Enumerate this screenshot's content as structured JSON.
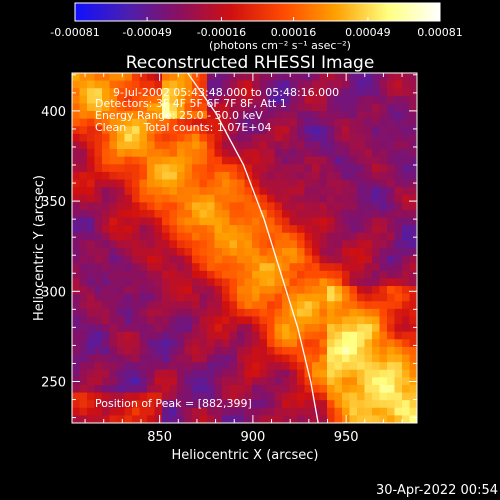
{
  "chart_data": {
    "type": "heatmap",
    "title": "Reconstructed RHESSI Image",
    "xlabel": "Heliocentric X (arcsec)",
    "ylabel": "Heliocentric Y (arcsec)",
    "xlim": [
      803,
      988
    ],
    "ylim": [
      227,
      421
    ],
    "x_ticks": [
      850,
      900,
      950
    ],
    "y_ticks": [
      250,
      300,
      350,
      400
    ],
    "colorbar": {
      "range": [
        -0.00081,
        0.00081
      ],
      "tick_values": [
        -0.00081,
        -0.00049,
        -0.00016,
        0.00016,
        0.00049,
        0.00081
      ],
      "tick_labels": [
        "-0.00081",
        "-0.00049",
        "-0.00016",
        "0.00016",
        "0.00049",
        "0.00081"
      ],
      "unit_label": "(photons cm⁻² s⁻¹ asec⁻²)",
      "colors": [
        "#1010ff",
        "#4a1fb0",
        "#8a1060",
        "#d01010",
        "#ff4a00",
        "#ffa000",
        "#ffff80",
        "#ffffff"
      ]
    },
    "annotations": {
      "time_range": "9-Jul-2002 05:43:48.000 to 05:48:16.000",
      "detectors": "Detectors: 3F 4F 5F 6F 7F 8F, Att 1",
      "energy": "Energy Range: 25.0 - 50.0 keV",
      "method": "Clean     Total counts: 1.07E+04",
      "peak": "Position of Peak = [882,399]"
    },
    "limb": [
      [
        865,
        421
      ],
      [
        880,
        399
      ],
      [
        895,
        370
      ],
      [
        906,
        340
      ],
      [
        915,
        310
      ],
      [
        924,
        280
      ],
      [
        931,
        250
      ],
      [
        935,
        227
      ]
    ]
  },
  "footer": {
    "timestamp": "30-Apr-2022 00:54"
  },
  "colors": {
    "background": "#000000",
    "text": "#ffffff",
    "limb": "#ffffff"
  }
}
